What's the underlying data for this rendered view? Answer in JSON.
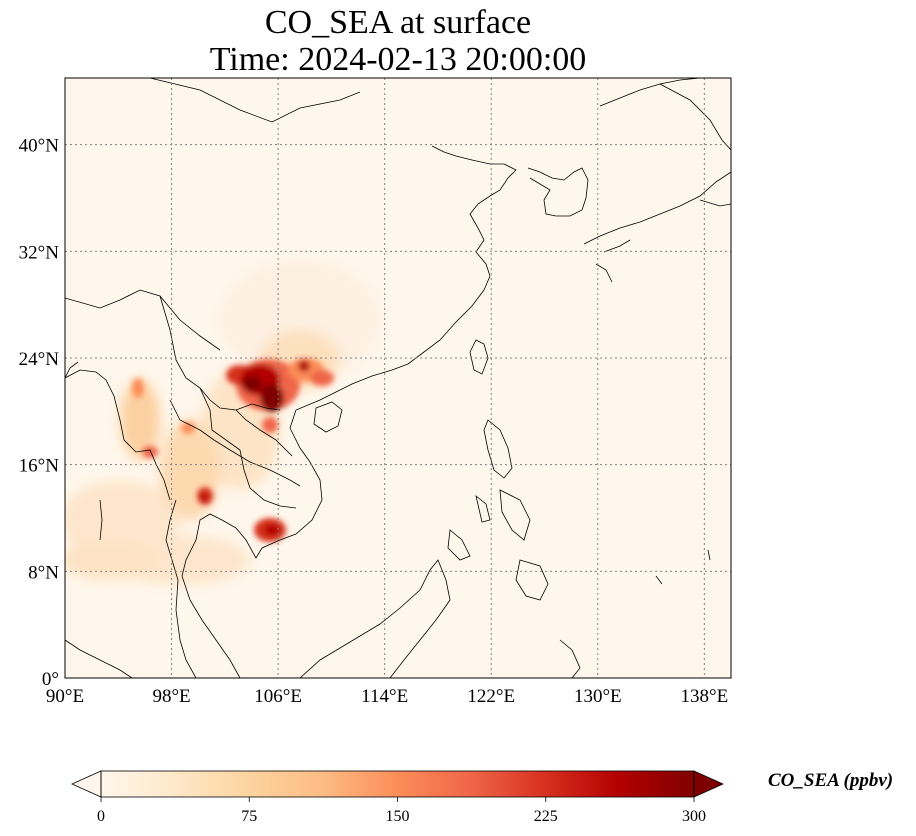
{
  "title_line1": "CO_SEA at surface",
  "title_line2": "Time: 2024-02-13 20:00:00",
  "map": {
    "projection": "PlateCarree",
    "lon_range": [
      90,
      140
    ],
    "lat_range": [
      0,
      45
    ],
    "lon_ticks": [
      90,
      98,
      106,
      114,
      122,
      130,
      138
    ],
    "lon_tick_labels": [
      "90°E",
      "98°E",
      "106°E",
      "114°E",
      "122°E",
      "130°E",
      "138°E"
    ],
    "lat_ticks": [
      0,
      8,
      16,
      24,
      32,
      40
    ],
    "lat_tick_labels": [
      "0°",
      "8°N",
      "16°N",
      "24°N",
      "32°N",
      "40°N"
    ],
    "gridlines": "dotted",
    "colormap": "OrRd",
    "hotspots": [
      {
        "name": "northern-vietnam-red-river-delta",
        "lon": 105.5,
        "lat": 21.5,
        "level": "very high"
      },
      {
        "name": "southern-vietnam-mekong",
        "lon": 106.0,
        "lat": 11.0,
        "level": "high"
      },
      {
        "name": "bangkok-area",
        "lon": 100.5,
        "lat": 13.7,
        "level": "high"
      },
      {
        "name": "myanmar-east",
        "lon": 96.5,
        "lat": 17.0,
        "level": "moderate"
      },
      {
        "name": "guangxi",
        "lon": 108.5,
        "lat": 23.0,
        "level": "high"
      }
    ]
  },
  "colorbar": {
    "label": "CO_SEA (ppbv)",
    "min": 0,
    "max": 300,
    "ticks": [
      "0",
      "75",
      "150",
      "225",
      "300"
    ],
    "extend": "both",
    "colors": [
      "#fff7ec",
      "#fee8c8",
      "#fdd49e",
      "#fdbb84",
      "#fc8d59",
      "#ef6548",
      "#d7301f",
      "#b30000",
      "#7f0000"
    ]
  }
}
